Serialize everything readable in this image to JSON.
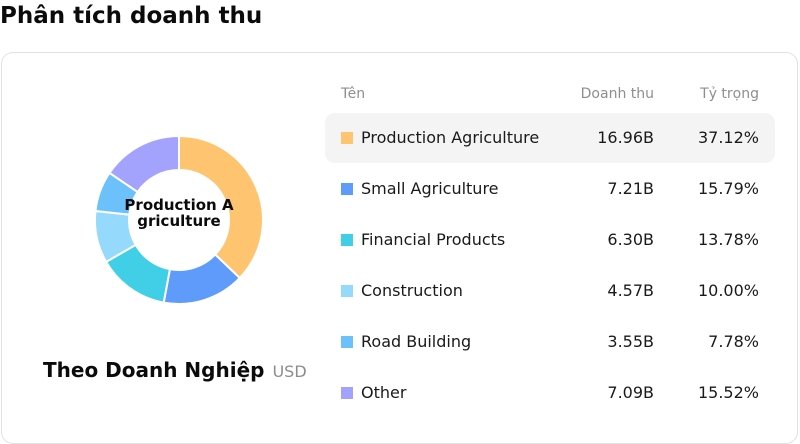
{
  "page": {
    "title": "Phân tích doanh thu"
  },
  "chart": {
    "center_label": "Production Agriculture",
    "subtitle": "Theo Doanh Nghiệp",
    "unit": "USD"
  },
  "table": {
    "headers": {
      "name": "Tên",
      "revenue": "Doanh thu",
      "share": "Tỷ trọng"
    },
    "rows": [
      {
        "name": "Production Agriculture",
        "revenue": "16.96B",
        "share": "37.12%",
        "color": "#FFC470",
        "active": true
      },
      {
        "name": "Small Agriculture",
        "revenue": "7.21B",
        "share": "15.79%",
        "color": "#5E9BFB",
        "active": false
      },
      {
        "name": "Financial Products",
        "revenue": "6.30B",
        "share": "13.78%",
        "color": "#40CFE6",
        "active": false
      },
      {
        "name": "Construction",
        "revenue": "4.57B",
        "share": "10.00%",
        "color": "#95DAFC",
        "active": false
      },
      {
        "name": "Road Building",
        "revenue": "3.55B",
        "share": "7.78%",
        "color": "#6CC1FB",
        "active": false
      },
      {
        "name": "Other",
        "revenue": "7.09B",
        "share": "15.52%",
        "color": "#A3A3FD",
        "active": false
      }
    ]
  },
  "chart_data": {
    "type": "pie",
    "variant": "donut",
    "title": "Phân tích doanh thu",
    "subtitle": "Theo Doanh Nghiệp (USD)",
    "center_label": "Production Agriculture",
    "categories": [
      "Production Agriculture",
      "Small Agriculture",
      "Financial Products",
      "Construction",
      "Road Building",
      "Other"
    ],
    "values": [
      16.96,
      7.21,
      6.3,
      4.57,
      3.55,
      7.09
    ],
    "value_unit": "B USD",
    "percentages": [
      37.12,
      15.79,
      13.78,
      10.0,
      7.78,
      15.52
    ],
    "colors": [
      "#FFC470",
      "#5E9BFB",
      "#40CFE6",
      "#95DAFC",
      "#6CC1FB",
      "#A3A3FD"
    ],
    "highlighted": "Production Agriculture",
    "legend_position": "right (table)"
  }
}
